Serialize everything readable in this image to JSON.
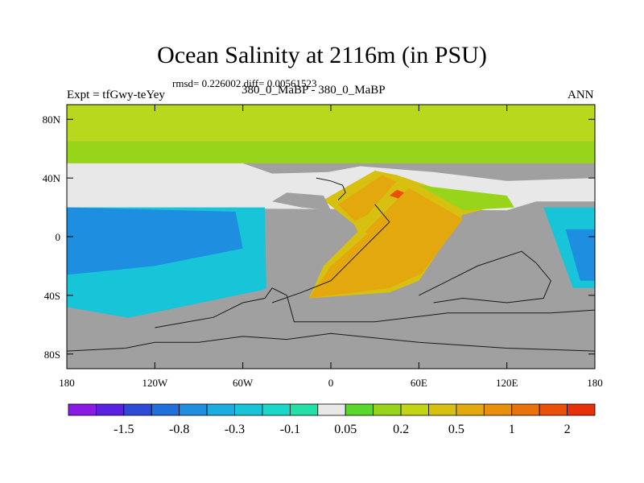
{
  "chart_data": {
    "type": "heatmap",
    "title": "Ocean Salinity at 2116m (in PSU)",
    "subtitle": "rmsd= 0.226002 diff= 0.00561523",
    "left_label": "Expt = tfGwy-teYey",
    "center_label": "380_0_MaBP - 380_0_MaBP",
    "right_label": "ANN",
    "x_ticks": [
      "180",
      "120W",
      "60W",
      "0",
      "60E",
      "120E",
      "180"
    ],
    "y_ticks": [
      "80N",
      "40N",
      "0",
      "40S",
      "80S"
    ],
    "xlim": [
      -180,
      180
    ],
    "ylim": [
      -90,
      90
    ],
    "colorbar": {
      "colors": [
        "#8a1ae6",
        "#5a22e0",
        "#2e4ad8",
        "#1f6fdc",
        "#1e8fe0",
        "#1aaee0",
        "#18c4d8",
        "#1ad8c8",
        "#22e0a8",
        "#e8e8e8",
        "#5ad82a",
        "#98d41a",
        "#c2d412",
        "#d8c010",
        "#e2a80e",
        "#e8900c",
        "#ea720a",
        "#ec5008",
        "#e83008"
      ],
      "labels": [
        "-1.5",
        "-0.8",
        "-0.3",
        "-0.1",
        "0.05",
        "0.2",
        "0.5",
        "1",
        "2"
      ]
    },
    "colors": {
      "land": "#a0a0a0",
      "arctic": "#b8d81e",
      "nh_green": "#98d41a",
      "mask": "#e8e8e8",
      "west_cyan": "#18c4d8",
      "west_blue": "#1e8fe0",
      "south_cyan": "#1ad8c8",
      "tethys_orange": "#e2a80e",
      "tethys_yellow": "#d8c010",
      "hot": "#ec5008"
    }
  }
}
